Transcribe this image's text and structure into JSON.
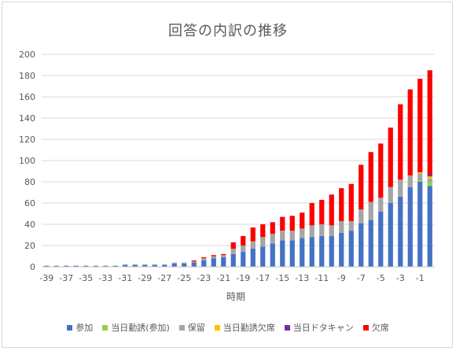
{
  "chart_data": {
    "type": "bar",
    "stacked": true,
    "title": "回答の内訳の推移",
    "xlabel": "時期",
    "ylabel": "",
    "ylim": [
      0,
      200
    ],
    "yticks": [
      0,
      20,
      40,
      60,
      80,
      100,
      120,
      140,
      160,
      180,
      200
    ],
    "grid": true,
    "legend_position": "bottom",
    "categories": [
      -39,
      -38,
      -37,
      -36,
      -35,
      -34,
      -33,
      -32,
      -31,
      -30,
      -29,
      -28,
      -27,
      -26,
      -25,
      -24,
      -23,
      -22,
      -21,
      -20,
      -19,
      -18,
      -17,
      -16,
      -15,
      -14,
      -13,
      -12,
      -11,
      -10,
      -9,
      -8,
      -7,
      -6,
      -5,
      -4,
      -3,
      -2,
      -1,
      0
    ],
    "xtick_labels": [
      "-39",
      "-37",
      "-35",
      "-33",
      "-31",
      "-29",
      "-27",
      "-25",
      "-23",
      "-21",
      "-19",
      "-17",
      "-15",
      "-13",
      "-11",
      "-9",
      "-7",
      "-5",
      "-3",
      "-1"
    ],
    "series": [
      {
        "name": "参加",
        "color": "#4472c4",
        "values": [
          1,
          1,
          1,
          1,
          1,
          1,
          1,
          1,
          2,
          2,
          2,
          2,
          2,
          3,
          3,
          4,
          6,
          8,
          9,
          12,
          14,
          17,
          19,
          22,
          25,
          25,
          27,
          28,
          29,
          29,
          32,
          34,
          41,
          44,
          52,
          60,
          66,
          75,
          80,
          76
        ]
      },
      {
        "name": "当日勤誘(参加)",
        "color": "#92d050",
        "values": [
          0,
          0,
          0,
          0,
          0,
          0,
          0,
          0,
          0,
          0,
          0,
          0,
          0,
          0,
          0,
          0,
          0,
          0,
          0,
          0,
          0,
          0,
          0,
          0,
          0,
          0,
          0,
          0,
          0,
          0,
          0,
          0,
          0,
          0,
          0,
          0,
          0,
          0,
          1,
          4
        ]
      },
      {
        "name": "保留",
        "color": "#a5a5a5",
        "values": [
          0,
          0,
          0,
          0,
          0,
          0,
          0,
          0,
          0,
          0,
          0,
          0,
          0,
          1,
          1,
          1,
          2,
          2,
          2,
          5,
          6,
          7,
          9,
          9,
          9,
          9,
          9,
          11,
          11,
          10,
          11,
          9,
          13,
          17,
          13,
          15,
          16,
          11,
          7,
          3
        ]
      },
      {
        "name": "当日勤誘欠席",
        "color": "#ffc000",
        "values": [
          0,
          0,
          0,
          0,
          0,
          0,
          0,
          0,
          0,
          0,
          0,
          0,
          0,
          0,
          0,
          0,
          0,
          0,
          0,
          0,
          0,
          0,
          0,
          0,
          0,
          0,
          0,
          0,
          0,
          0,
          0,
          0,
          0,
          0,
          0,
          0,
          0,
          0,
          1,
          2
        ]
      },
      {
        "name": "当日ドタキャン",
        "color": "#7030a0",
        "values": [
          0,
          0,
          0,
          0,
          0,
          0,
          0,
          0,
          0,
          0,
          0,
          0,
          0,
          0,
          0,
          0,
          0,
          0,
          0,
          0,
          0,
          0,
          0,
          0,
          0,
          0,
          0,
          0,
          0,
          0,
          0,
          0,
          0,
          0,
          0,
          0,
          0,
          0,
          0,
          2
        ]
      },
      {
        "name": "欠席",
        "color": "#ff0000",
        "values": [
          0,
          0,
          0,
          0,
          0,
          0,
          0,
          0,
          0,
          0,
          0,
          0,
          0,
          0,
          0,
          1,
          1,
          1,
          1,
          6,
          9,
          13,
          12,
          11,
          13,
          14,
          15,
          21,
          23,
          29,
          31,
          35,
          42,
          47,
          51,
          56,
          71,
          81,
          88,
          98
        ]
      }
    ]
  }
}
